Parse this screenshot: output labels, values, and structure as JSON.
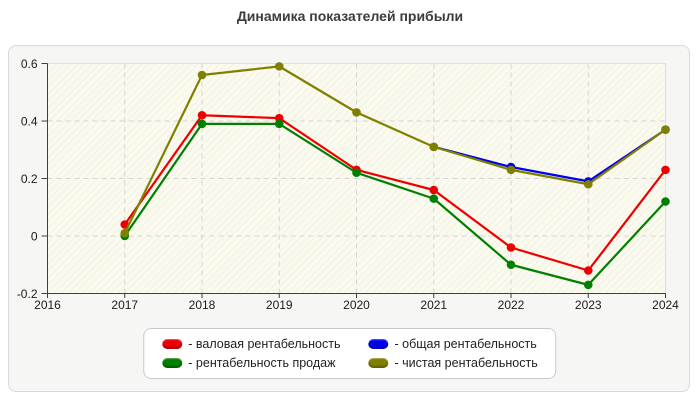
{
  "title": "Динамика показателей прибыли",
  "legend": {
    "items": [
      {
        "label": "- валовая рентабельность",
        "color": "#ee0000"
      },
      {
        "label": "- общая рентабельность",
        "color": "#0000ee"
      },
      {
        "label": "- рентабельность продаж",
        "color": "#008000"
      },
      {
        "label": "- чистая рентабельность",
        "color": "#808000"
      }
    ]
  },
  "chart_data": {
    "type": "line",
    "title": "Динамика показателей прибыли",
    "xlabel": "",
    "ylabel": "",
    "xlim": [
      2016,
      2024
    ],
    "ylim": [
      -0.2,
      0.6
    ],
    "xticks": [
      2016,
      2017,
      2018,
      2019,
      2020,
      2021,
      2022,
      2023,
      2024
    ],
    "yticks": [
      0.6,
      0.4,
      0.2,
      0,
      -0.2
    ],
    "ytick_labels": [
      "0.6",
      "0.4",
      "0.2",
      "0",
      "-0.2"
    ],
    "grid": "dashed, horizontal at 0.4/0.2/0 and vertical at 2017-2023",
    "legend_position": "bottom-center",
    "marker": "filled-circle",
    "series": [
      {
        "name": "валовая рентабельность",
        "color": "#ee0000",
        "years": [
          2017,
          2018,
          2019,
          2020,
          2021,
          2022,
          2023,
          2024
        ],
        "values": [
          0.04,
          0.42,
          0.41,
          0.23,
          0.16,
          -0.04,
          -0.12,
          0.23
        ]
      },
      {
        "name": "рентабельность продаж",
        "color": "#008000",
        "years": [
          2017,
          2018,
          2019,
          2020,
          2021,
          2022,
          2023,
          2024
        ],
        "values": [
          0.0,
          0.39,
          0.39,
          0.22,
          0.13,
          -0.1,
          -0.17,
          0.12
        ]
      },
      {
        "name": "общая рентабельность",
        "color": "#0000ee",
        "years": [
          2021,
          2022,
          2023,
          2024
        ],
        "values": [
          0.31,
          0.24,
          0.19,
          0.37
        ]
      },
      {
        "name": "чистая рентабельность",
        "color": "#808000",
        "years": [
          2017,
          2018,
          2019,
          2020,
          2021,
          2022,
          2023,
          2024
        ],
        "values": [
          0.01,
          0.56,
          0.59,
          0.43,
          0.31,
          0.23,
          0.18,
          0.37
        ]
      }
    ]
  }
}
